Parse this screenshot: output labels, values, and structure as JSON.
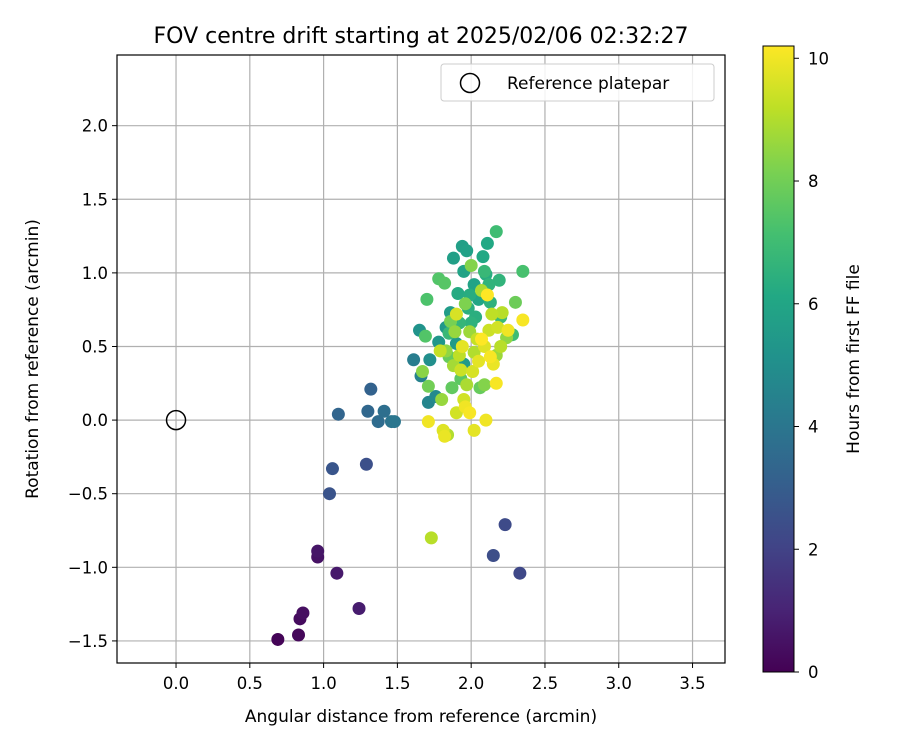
{
  "chart_data": {
    "type": "scatter",
    "title": "FOV centre drift starting at 2025/02/06 02:32:27",
    "xlabel": "Angular distance from reference (arcmin)",
    "ylabel": "Rotation from reference (arcmin)",
    "xlim": [
      -0.4,
      3.72
    ],
    "ylim": [
      -1.65,
      2.48
    ],
    "xticks": [
      0.0,
      0.5,
      1.0,
      1.5,
      2.0,
      2.5,
      3.0,
      3.5
    ],
    "xtick_labels": [
      "0.0",
      "0.5",
      "1.0",
      "1.5",
      "2.0",
      "2.5",
      "3.0",
      "3.5"
    ],
    "yticks": [
      -1.5,
      -1.0,
      -0.5,
      0.0,
      0.5,
      1.0,
      1.5,
      2.0
    ],
    "ytick_labels": [
      "−1.5",
      "−1.0",
      "−0.5",
      "0.0",
      "0.5",
      "1.0",
      "1.5",
      "2.0"
    ],
    "grid": true,
    "legend": {
      "placement": "top-right",
      "entries": [
        "Reference platepar"
      ]
    },
    "reference": {
      "x": 0.0,
      "y": 0.0,
      "label": "Reference platepar"
    },
    "colorbar": {
      "label": "Hours from first FF file",
      "min": 0,
      "max": 10.2,
      "ticks": [
        0,
        2,
        4,
        6,
        8,
        10
      ],
      "tick_labels": [
        "0",
        "2",
        "4",
        "6",
        "8",
        "10"
      ],
      "colormap": "viridis"
    },
    "points": [
      {
        "x": 0.69,
        "y": -1.49,
        "h": 0.1
      },
      {
        "x": 0.83,
        "y": -1.46,
        "h": 0.2
      },
      {
        "x": 0.84,
        "y": -1.35,
        "h": 0.3
      },
      {
        "x": 0.86,
        "y": -1.31,
        "h": 0.4
      },
      {
        "x": 0.96,
        "y": -0.93,
        "h": 0.5
      },
      {
        "x": 0.96,
        "y": -0.89,
        "h": 0.6
      },
      {
        "x": 1.09,
        "y": -1.04,
        "h": 0.7
      },
      {
        "x": 1.24,
        "y": -1.28,
        "h": 0.8
      },
      {
        "x": 1.04,
        "y": -0.5,
        "h": 2.6
      },
      {
        "x": 1.06,
        "y": -0.33,
        "h": 2.7
      },
      {
        "x": 1.29,
        "y": -0.3,
        "h": 2.5
      },
      {
        "x": 2.15,
        "y": -0.92,
        "h": 2.4
      },
      {
        "x": 2.23,
        "y": -0.71,
        "h": 2.3
      },
      {
        "x": 2.33,
        "y": -1.04,
        "h": 2.2
      },
      {
        "x": 1.1,
        "y": 0.04,
        "h": 3.3
      },
      {
        "x": 1.3,
        "y": 0.06,
        "h": 3.4
      },
      {
        "x": 1.32,
        "y": 0.21,
        "h": 3.2
      },
      {
        "x": 1.37,
        "y": -0.01,
        "h": 3.6
      },
      {
        "x": 1.41,
        "y": 0.06,
        "h": 3.7
      },
      {
        "x": 1.46,
        "y": -0.01,
        "h": 3.9
      },
      {
        "x": 1.48,
        "y": -0.01,
        "h": 4.0
      },
      {
        "x": 1.61,
        "y": 0.41,
        "h": 4.3
      },
      {
        "x": 1.66,
        "y": 0.3,
        "h": 4.5
      },
      {
        "x": 1.71,
        "y": 0.12,
        "h": 4.6
      },
      {
        "x": 1.76,
        "y": 0.16,
        "h": 4.8
      },
      {
        "x": 1.72,
        "y": 0.41,
        "h": 5.0
      },
      {
        "x": 1.65,
        "y": 0.61,
        "h": 5.2
      },
      {
        "x": 1.78,
        "y": 0.53,
        "h": 5.3
      },
      {
        "x": 1.83,
        "y": 0.63,
        "h": 5.4
      },
      {
        "x": 1.9,
        "y": 0.52,
        "h": 5.5
      },
      {
        "x": 1.95,
        "y": 0.38,
        "h": 5.5
      },
      {
        "x": 1.86,
        "y": 0.73,
        "h": 5.6
      },
      {
        "x": 1.88,
        "y": 1.1,
        "h": 5.7
      },
      {
        "x": 1.94,
        "y": 1.18,
        "h": 5.7
      },
      {
        "x": 1.97,
        "y": 1.15,
        "h": 5.8
      },
      {
        "x": 1.95,
        "y": 1.01,
        "h": 5.9
      },
      {
        "x": 2.02,
        "y": 0.92,
        "h": 5.9
      },
      {
        "x": 2.05,
        "y": 0.82,
        "h": 6.0
      },
      {
        "x": 2.11,
        "y": 1.2,
        "h": 6.1
      },
      {
        "x": 2.08,
        "y": 1.11,
        "h": 6.1
      },
      {
        "x": 1.91,
        "y": 0.86,
        "h": 6.2
      },
      {
        "x": 1.99,
        "y": 0.85,
        "h": 6.3
      },
      {
        "x": 2.1,
        "y": 0.99,
        "h": 6.3
      },
      {
        "x": 2.03,
        "y": 0.7,
        "h": 6.4
      },
      {
        "x": 1.98,
        "y": 0.76,
        "h": 6.4
      },
      {
        "x": 2.13,
        "y": 0.8,
        "h": 6.5
      },
      {
        "x": 2.19,
        "y": 0.95,
        "h": 6.6
      },
      {
        "x": 2.12,
        "y": 0.92,
        "h": 6.6
      },
      {
        "x": 1.92,
        "y": 0.66,
        "h": 6.7
      },
      {
        "x": 2.09,
        "y": 1.01,
        "h": 6.8
      },
      {
        "x": 1.85,
        "y": 0.59,
        "h": 6.8
      },
      {
        "x": 2.2,
        "y": 0.7,
        "h": 6.9
      },
      {
        "x": 2.17,
        "y": 1.28,
        "h": 7.0
      },
      {
        "x": 2.28,
        "y": 0.58,
        "h": 7.0
      },
      {
        "x": 2.35,
        "y": 1.01,
        "h": 7.2
      },
      {
        "x": 1.7,
        "y": 0.82,
        "h": 7.3
      },
      {
        "x": 1.78,
        "y": 0.96,
        "h": 7.4
      },
      {
        "x": 1.82,
        "y": 0.93,
        "h": 7.5
      },
      {
        "x": 1.69,
        "y": 0.57,
        "h": 7.4
      },
      {
        "x": 1.93,
        "y": 0.28,
        "h": 7.6
      },
      {
        "x": 1.87,
        "y": 0.22,
        "h": 7.7
      },
      {
        "x": 2.06,
        "y": 0.22,
        "h": 7.8
      },
      {
        "x": 2.3,
        "y": 0.8,
        "h": 7.9
      },
      {
        "x": 1.71,
        "y": 0.23,
        "h": 8.0
      },
      {
        "x": 1.86,
        "y": 0.67,
        "h": 8.1
      },
      {
        "x": 1.96,
        "y": 0.79,
        "h": 8.2
      },
      {
        "x": 2.0,
        "y": 1.05,
        "h": 8.3
      },
      {
        "x": 2.09,
        "y": 0.24,
        "h": 8.3
      },
      {
        "x": 1.67,
        "y": 0.33,
        "h": 8.4
      },
      {
        "x": 1.83,
        "y": 0.47,
        "h": 8.5
      },
      {
        "x": 2.24,
        "y": 0.56,
        "h": 8.5
      },
      {
        "x": 1.8,
        "y": 0.14,
        "h": 8.6
      },
      {
        "x": 1.99,
        "y": 0.6,
        "h": 8.7
      },
      {
        "x": 2.17,
        "y": 0.44,
        "h": 8.7
      },
      {
        "x": 1.88,
        "y": 0.37,
        "h": 8.8
      },
      {
        "x": 2.07,
        "y": 0.88,
        "h": 8.9
      },
      {
        "x": 1.84,
        "y": -0.1,
        "h": 9.0
      },
      {
        "x": 1.73,
        "y": -0.8,
        "h": 9.1
      },
      {
        "x": 2.21,
        "y": 0.73,
        "h": 9.1
      },
      {
        "x": 1.92,
        "y": 0.44,
        "h": 9.2
      },
      {
        "x": 2.04,
        "y": 0.55,
        "h": 9.3
      },
      {
        "x": 1.79,
        "y": 0.47,
        "h": 9.3
      },
      {
        "x": 2.12,
        "y": 0.61,
        "h": 9.4
      },
      {
        "x": 1.95,
        "y": 0.14,
        "h": 9.5
      },
      {
        "x": 2.18,
        "y": 0.63,
        "h": 9.5
      },
      {
        "x": 2.01,
        "y": 0.33,
        "h": 9.6
      },
      {
        "x": 1.9,
        "y": 0.72,
        "h": 9.6
      },
      {
        "x": 2.09,
        "y": 0.5,
        "h": 9.7
      },
      {
        "x": 1.81,
        "y": -0.07,
        "h": 9.7
      },
      {
        "x": 2.02,
        "y": -0.07,
        "h": 9.8
      },
      {
        "x": 1.94,
        "y": 0.5,
        "h": 9.8
      },
      {
        "x": 2.15,
        "y": 0.38,
        "h": 9.9
      },
      {
        "x": 1.82,
        "y": -0.11,
        "h": 9.9
      },
      {
        "x": 2.1,
        "y": 0.0,
        "h": 10.0
      },
      {
        "x": 2.25,
        "y": 0.61,
        "h": 10.0
      },
      {
        "x": 1.71,
        "y": -0.01,
        "h": 10.0
      },
      {
        "x": 2.35,
        "y": 0.68,
        "h": 10.1
      },
      {
        "x": 2.17,
        "y": 0.25,
        "h": 10.1
      },
      {
        "x": 1.99,
        "y": 0.05,
        "h": 10.1
      },
      {
        "x": 2.07,
        "y": 0.55,
        "h": 10.2
      },
      {
        "x": 2.11,
        "y": 0.85,
        "h": 10.2
      },
      {
        "x": 1.93,
        "y": 0.34,
        "h": 9.4
      },
      {
        "x": 2.02,
        "y": 0.46,
        "h": 9.0
      },
      {
        "x": 1.97,
        "y": 0.24,
        "h": 8.9
      },
      {
        "x": 2.14,
        "y": 0.72,
        "h": 9.2
      },
      {
        "x": 1.89,
        "y": 0.6,
        "h": 8.6
      },
      {
        "x": 2.05,
        "y": 0.4,
        "h": 9.8
      },
      {
        "x": 1.85,
        "y": 0.43,
        "h": 7.8
      },
      {
        "x": 2.2,
        "y": 0.5,
        "h": 9.1
      },
      {
        "x": 2.0,
        "y": 0.66,
        "h": 6.5
      },
      {
        "x": 1.96,
        "y": 0.09,
        "h": 10.0
      },
      {
        "x": 2.13,
        "y": 0.43,
        "h": 10.1
      },
      {
        "x": 1.9,
        "y": 0.05,
        "h": 9.5
      }
    ]
  }
}
